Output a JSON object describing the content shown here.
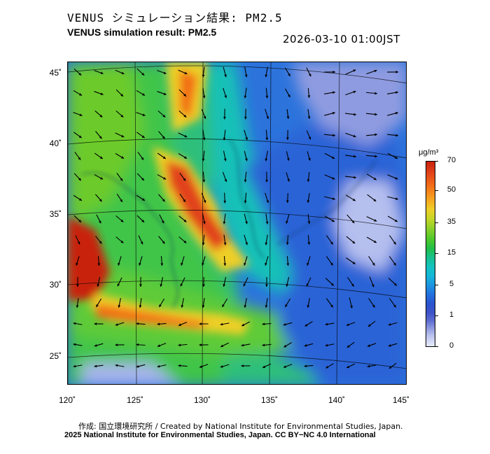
{
  "header": {
    "title_jp": "VENUS シミュレーション結果: PM2.5",
    "title_en": "VENUS simulation result: PM2.5",
    "timestamp": "2026-03-10 01:00JST"
  },
  "map": {
    "lat_labels": [
      "45˚",
      "40˚",
      "35˚",
      "30˚",
      "25˚"
    ],
    "lon_labels": [
      "120˚",
      "125˚",
      "130˚",
      "135˚",
      "140˚",
      "145˚"
    ],
    "colors": {
      "very_high": "#c8220c",
      "high": "#f26d18",
      "mid_high": "#eecf28",
      "mid": "#4fc82b",
      "low_mid": "#14c2c0",
      "low": "#2370df",
      "very_low": "#8b97de",
      "clean": "#e7ebfa"
    }
  },
  "colorbar": {
    "unit": "μg/m³",
    "ticks": [
      "70",
      "50",
      "35",
      "15",
      "5",
      "1",
      "0"
    ]
  },
  "footer": {
    "credit_line1": "作成: 国立環境研究所 / Created by National Institute for Environmental Studies, Japan.",
    "credit_line2": "2025 National Institute for Environmental Studies, Japan. CC BY−NC 4.0 International"
  }
}
